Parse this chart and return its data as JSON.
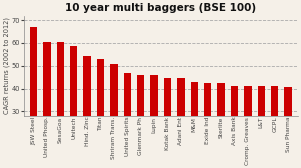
{
  "title": "10 year multi baggers (BSE 100)",
  "ylabel": "CAGR returns (2002 to 2012)",
  "categories": [
    "JSW Steel",
    "United Phosp.",
    "SesaGoa",
    "Unitech",
    "Hind. Zinc",
    "Titan",
    "Shriram Trans.",
    "United Spirits",
    "Glenmark Ph",
    "Lupin",
    "Kotak Bank",
    "Adani Ent",
    "M&M",
    "Exide Ind",
    "Sterlite",
    "Axis Bank",
    "Cromp. Greaves",
    "L&T",
    "GCPL",
    "Sun Pharma"
  ],
  "values": [
    67,
    60.5,
    60.5,
    58.5,
    54.5,
    53,
    51,
    47,
    46,
    46,
    44.5,
    44.5,
    43,
    42.5,
    42.5,
    41,
    41,
    41,
    41,
    40.5
  ],
  "bar_color": "#cc0000",
  "ylim": [
    28,
    72
  ],
  "yticks": [
    30,
    40,
    50,
    60,
    70
  ],
  "background_color": "#f5f0e8",
  "plot_bg_color": "#f5f0e8",
  "grid_color": "#aaaaaa",
  "title_fontsize": 7.5,
  "label_fontsize": 4.2,
  "ylabel_fontsize": 4.8,
  "ytick_fontsize": 4.8
}
